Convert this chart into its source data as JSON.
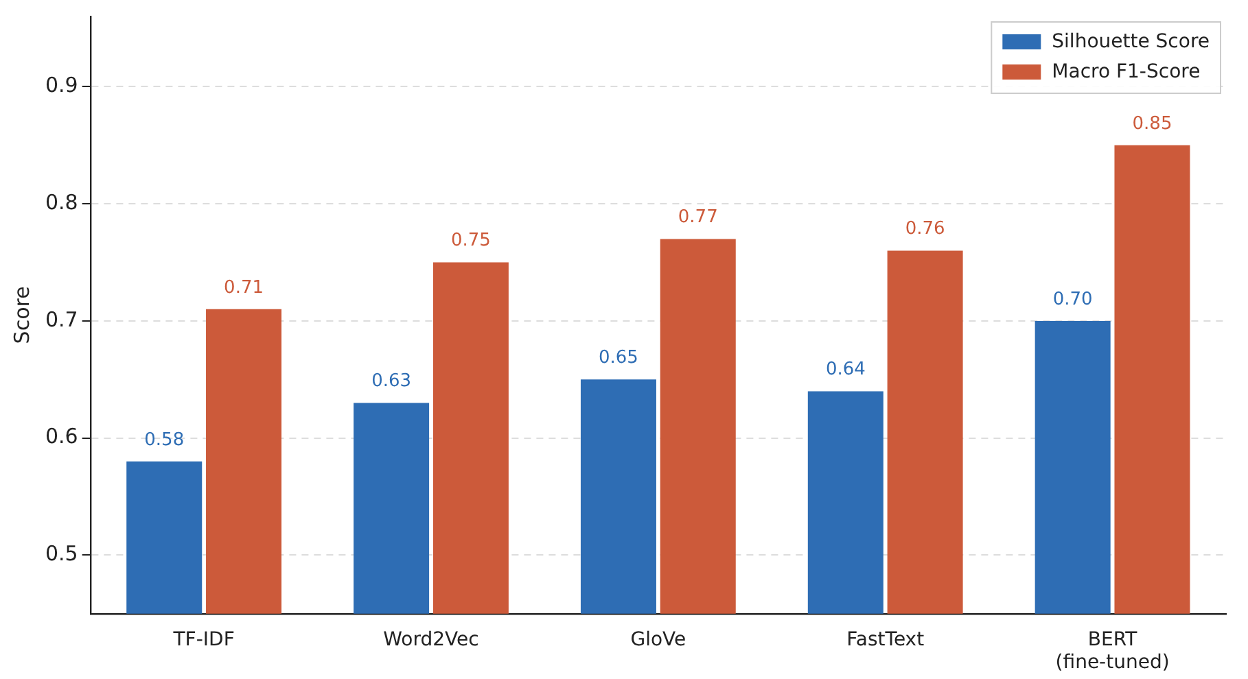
{
  "chart_data": {
    "type": "bar",
    "ylabel": "Score",
    "categories": [
      "TF-IDF",
      "Word2Vec",
      "GloVe",
      "FastText",
      "BERT\n(fine-tuned)"
    ],
    "series": [
      {
        "name": "Silhouette Score",
        "color": "#2e6db4",
        "values": [
          0.58,
          0.63,
          0.65,
          0.64,
          0.7
        ],
        "value_labels": [
          "0.58",
          "0.63",
          "0.65",
          "0.64",
          "0.70"
        ]
      },
      {
        "name": "Macro F1-Score",
        "color": "#cc5a3a",
        "values": [
          0.71,
          0.75,
          0.77,
          0.76,
          0.85
        ],
        "value_labels": [
          "0.71",
          "0.75",
          "0.77",
          "0.76",
          "0.85"
        ]
      }
    ],
    "ylim": [
      0.45,
      0.96
    ],
    "yticks": [
      0.5,
      0.6,
      0.7,
      0.8,
      0.9
    ],
    "grid": "y",
    "legend": "top right"
  }
}
